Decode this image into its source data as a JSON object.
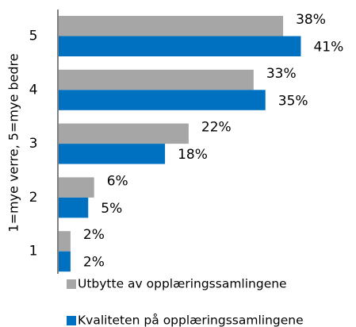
{
  "chart_data": {
    "type": "hbar",
    "ylabel": "1=mye verre, 5=mye bedre",
    "categories": [
      "5",
      "4",
      "3",
      "2",
      "1"
    ],
    "series": [
      {
        "name": "Utbytte av opplæringssamlingene",
        "color": "#a6a6a6",
        "values": [
          38,
          33,
          22,
          6,
          2
        ],
        "value_labels": [
          "38%",
          "33%",
          "22%",
          "6%",
          "2%"
        ]
      },
      {
        "name": "Kvaliteten på opplæringssamlingene",
        "color": "#0070c0",
        "values": [
          41,
          35,
          18,
          5,
          2
        ],
        "value_labels": [
          "41%",
          "35%",
          "18%",
          "5%",
          "2%"
        ]
      }
    ]
  }
}
